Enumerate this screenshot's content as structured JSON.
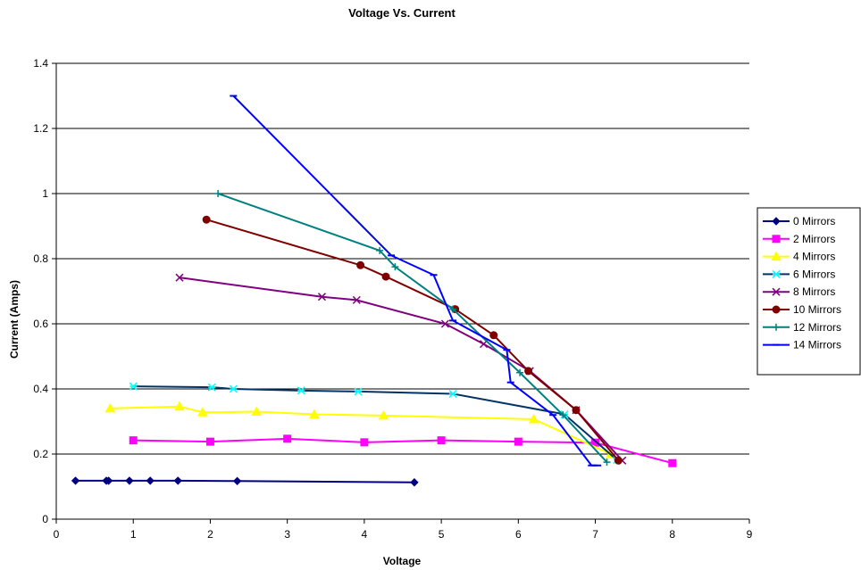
{
  "chart_data": {
    "type": "scatter",
    "title": "Voltage Vs. Current",
    "xlabel": "Voltage",
    "ylabel": "Current  (Amps)",
    "xlim": [
      0,
      9
    ],
    "ylim": [
      0,
      1.4
    ],
    "x_ticks": [
      "0",
      "1",
      "2",
      "3",
      "4",
      "5",
      "6",
      "7",
      "8",
      "9"
    ],
    "y_ticks": [
      "0",
      "0.2",
      "0.4",
      "0.6",
      "0.8",
      "1",
      "1.2",
      "1.4"
    ],
    "grid": "horizontal major gridlines",
    "legend_position": "right",
    "series": [
      {
        "name": "0 Mirrors",
        "color": "#000080",
        "marker": "diamond",
        "x": [
          0.25,
          0.65,
          0.68,
          0.95,
          1.22,
          1.58,
          2.35,
          4.65
        ],
        "y": [
          0.118,
          0.118,
          0.118,
          0.118,
          0.118,
          0.118,
          0.117,
          0.113
        ]
      },
      {
        "name": "2 Mirrors",
        "color": "#FF00FF",
        "marker": "square",
        "x": [
          1.0,
          2.0,
          3.0,
          4.0,
          5.0,
          6.0,
          7.0,
          8.0
        ],
        "y": [
          0.242,
          0.238,
          0.247,
          0.236,
          0.242,
          0.238,
          0.235,
          0.172
        ]
      },
      {
        "name": "4 Mirrors",
        "color": "#FFFF00",
        "marker": "triangle",
        "x": [
          0.7,
          1.6,
          1.9,
          2.6,
          3.35,
          4.25,
          6.2,
          7.2
        ],
        "y": [
          0.34,
          0.346,
          0.328,
          0.33,
          0.322,
          0.318,
          0.307,
          0.2
        ]
      },
      {
        "name": "6 Mirrors",
        "color": "#00FFFF",
        "line_color": "#003366",
        "marker": "asterisk",
        "x": [
          1.0,
          2.02,
          2.3,
          3.18,
          3.92,
          5.15,
          6.6,
          7.28
        ],
        "y": [
          0.408,
          0.405,
          0.4,
          0.395,
          0.392,
          0.385,
          0.322,
          0.182
        ]
      },
      {
        "name": "8 Mirrors",
        "color": "#800080",
        "marker": "x",
        "x": [
          1.6,
          3.45,
          3.9,
          5.05,
          5.55,
          6.15,
          6.75,
          7.35
        ],
        "y": [
          0.742,
          0.683,
          0.673,
          0.6,
          0.538,
          0.455,
          0.335,
          0.18
        ]
      },
      {
        "name": "10 Mirrors",
        "color": "#800000",
        "marker": "circle",
        "x": [
          1.95,
          3.95,
          4.28,
          5.18,
          5.68,
          6.13,
          6.75,
          7.3
        ],
        "y": [
          0.92,
          0.78,
          0.745,
          0.645,
          0.565,
          0.455,
          0.335,
          0.18
        ]
      },
      {
        "name": "12 Mirrors",
        "color": "#008080",
        "marker": "plus",
        "x": [
          2.1,
          4.2,
          4.4,
          5.15,
          6.02,
          6.58,
          7.15
        ],
        "y": [
          1.0,
          0.825,
          0.775,
          0.645,
          0.45,
          0.32,
          0.175
        ]
      },
      {
        "name": "14 Mirrors",
        "color": "#0000FF",
        "marker": "dash",
        "x": [
          2.3,
          4.35,
          4.9,
          5.15,
          5.85,
          5.9,
          6.45,
          6.95,
          7.03
        ],
        "y": [
          1.3,
          0.81,
          0.75,
          0.61,
          0.52,
          0.42,
          0.32,
          0.165,
          0.165
        ]
      }
    ]
  }
}
